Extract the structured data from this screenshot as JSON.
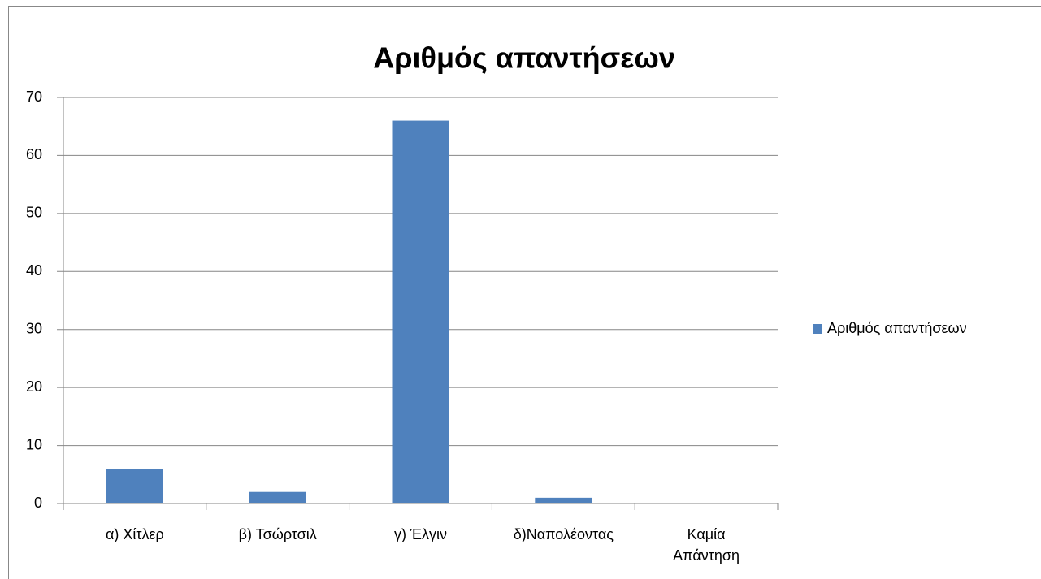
{
  "chart_data": {
    "type": "bar",
    "title": "Αριθμός απαντήσεων",
    "categories": [
      "α) Χίτλερ",
      "β) Τσώρτσιλ",
      "γ) Έλγιν",
      "δ)Ναπολέοντας",
      "Καμία Απάντηση"
    ],
    "series": [
      {
        "name": "Αριθμός απαντήσεων",
        "color": "#4f81bd",
        "values": [
          6,
          2,
          66,
          1,
          0
        ]
      }
    ],
    "ylim": [
      0,
      70
    ],
    "yticks": [
      0,
      10,
      20,
      30,
      40,
      50,
      60,
      70
    ],
    "grid": true,
    "legend": "right"
  }
}
